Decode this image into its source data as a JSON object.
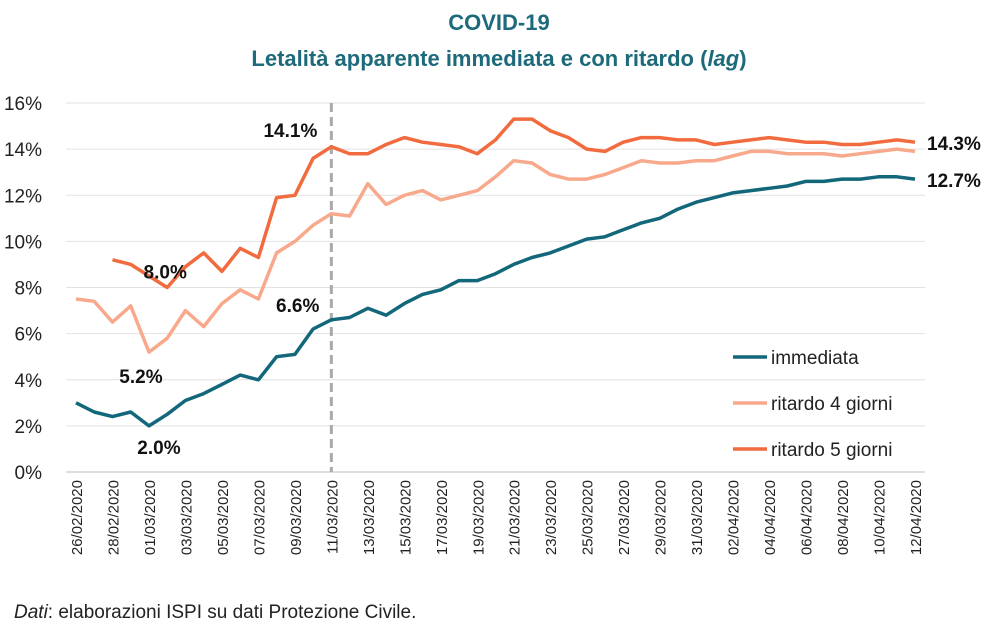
{
  "header": {
    "title": "COVID-19",
    "subtitle_main": "Letalità apparente immediata e con ritardo (",
    "subtitle_italic": "lag",
    "subtitle_close": ")"
  },
  "footer": {
    "source_italic": "Dati",
    "source_text": ": elaborazioni ISPI su dati Protezione Civile."
  },
  "chart_data": {
    "type": "line",
    "title": "COVID-19 Letalità apparente immediata e con ritardo (lag)",
    "ylim": [
      0,
      16
    ],
    "y_ticks": [
      "0%",
      "2%",
      "4%",
      "6%",
      "8%",
      "10%",
      "12%",
      "14%",
      "16%"
    ],
    "grid": true,
    "legend_placement": "bottom-right",
    "x": [
      "26/02/2020",
      "27/02/2020",
      "28/02/2020",
      "29/02/2020",
      "01/03/2020",
      "02/03/2020",
      "03/03/2020",
      "04/03/2020",
      "05/03/2020",
      "06/03/2020",
      "07/03/2020",
      "08/03/2020",
      "09/03/2020",
      "10/03/2020",
      "11/03/2020",
      "12/03/2020",
      "13/03/2020",
      "14/03/2020",
      "15/03/2020",
      "16/03/2020",
      "17/03/2020",
      "18/03/2020",
      "19/03/2020",
      "20/03/2020",
      "21/03/2020",
      "22/03/2020",
      "23/03/2020",
      "24/03/2020",
      "25/03/2020",
      "26/03/2020",
      "27/03/2020",
      "28/03/2020",
      "29/03/2020",
      "30/03/2020",
      "31/03/2020",
      "01/04/2020",
      "02/04/2020",
      "03/04/2020",
      "04/04/2020",
      "05/04/2020",
      "06/04/2020",
      "07/04/2020",
      "08/04/2020",
      "09/04/2020",
      "10/04/2020",
      "11/04/2020",
      "12/04/2020"
    ],
    "x_tick_labels": [
      "26/02/2020",
      "28/02/2020",
      "01/03/2020",
      "03/03/2020",
      "05/03/2020",
      "07/03/2020",
      "09/03/2020",
      "11/03/2020",
      "13/03/2020",
      "15/03/2020",
      "17/03/2020",
      "19/03/2020",
      "21/03/2020",
      "23/03/2020",
      "25/03/2020",
      "27/03/2020",
      "29/03/2020",
      "31/03/2020",
      "02/04/2020",
      "04/04/2020",
      "06/04/2020",
      "08/04/2020",
      "10/04/2020",
      "12/04/2020"
    ],
    "vline_index": 14,
    "series": [
      {
        "name": "immediata",
        "color": "#12677a",
        "values": [
          3.0,
          2.6,
          2.4,
          2.6,
          2.0,
          2.5,
          3.1,
          3.4,
          3.8,
          4.2,
          4.0,
          5.0,
          5.1,
          6.2,
          6.6,
          6.7,
          7.1,
          6.8,
          7.3,
          7.7,
          7.9,
          8.3,
          8.3,
          8.6,
          9.0,
          9.3,
          9.5,
          9.8,
          10.1,
          10.2,
          10.5,
          10.8,
          11.0,
          11.4,
          11.7,
          11.9,
          12.1,
          12.2,
          12.3,
          12.4,
          12.6,
          12.6,
          12.7,
          12.7,
          12.8,
          12.8,
          12.7
        ]
      },
      {
        "name": "ritardo 4 giorni",
        "color": "#f8a98c",
        "values": [
          7.5,
          7.4,
          6.5,
          7.2,
          5.2,
          5.8,
          7.0,
          6.3,
          7.3,
          7.9,
          7.5,
          9.5,
          10.0,
          10.7,
          11.2,
          11.1,
          12.5,
          11.6,
          12.0,
          12.2,
          11.8,
          12.0,
          12.2,
          12.8,
          13.5,
          13.4,
          12.9,
          12.7,
          12.7,
          12.9,
          13.2,
          13.5,
          13.4,
          13.4,
          13.5,
          13.5,
          13.7,
          13.9,
          13.9,
          13.8,
          13.8,
          13.8,
          13.7,
          13.8,
          13.9,
          14.0,
          13.9
        ]
      },
      {
        "name": "ritardo 5 giorni",
        "color": "#f26b3f",
        "values": [
          null,
          null,
          9.2,
          9.0,
          8.5,
          8.0,
          8.9,
          9.5,
          8.7,
          9.7,
          9.3,
          11.9,
          12.0,
          13.6,
          14.1,
          13.8,
          13.8,
          14.2,
          14.5,
          14.3,
          14.2,
          14.1,
          13.8,
          14.4,
          15.3,
          15.3,
          14.8,
          14.5,
          14.0,
          13.9,
          14.3,
          14.5,
          14.5,
          14.4,
          14.4,
          14.2,
          14.3,
          14.4,
          14.5,
          14.4,
          14.3,
          14.3,
          14.2,
          14.2,
          14.3,
          14.4,
          14.3
        ]
      }
    ],
    "annotations": [
      {
        "text": "8.0%",
        "series": 2,
        "index": 5
      },
      {
        "text": "5.2%",
        "series": 1,
        "index": 4
      },
      {
        "text": "2.0%",
        "series": 0,
        "index": 4
      },
      {
        "text": "14.1%",
        "series": 2,
        "index": 14
      },
      {
        "text": "6.6%",
        "series": 0,
        "index": 14
      },
      {
        "text": "14.3%",
        "series": 2,
        "index": 46
      },
      {
        "text": "12.7%",
        "series": 0,
        "index": 46
      }
    ]
  }
}
